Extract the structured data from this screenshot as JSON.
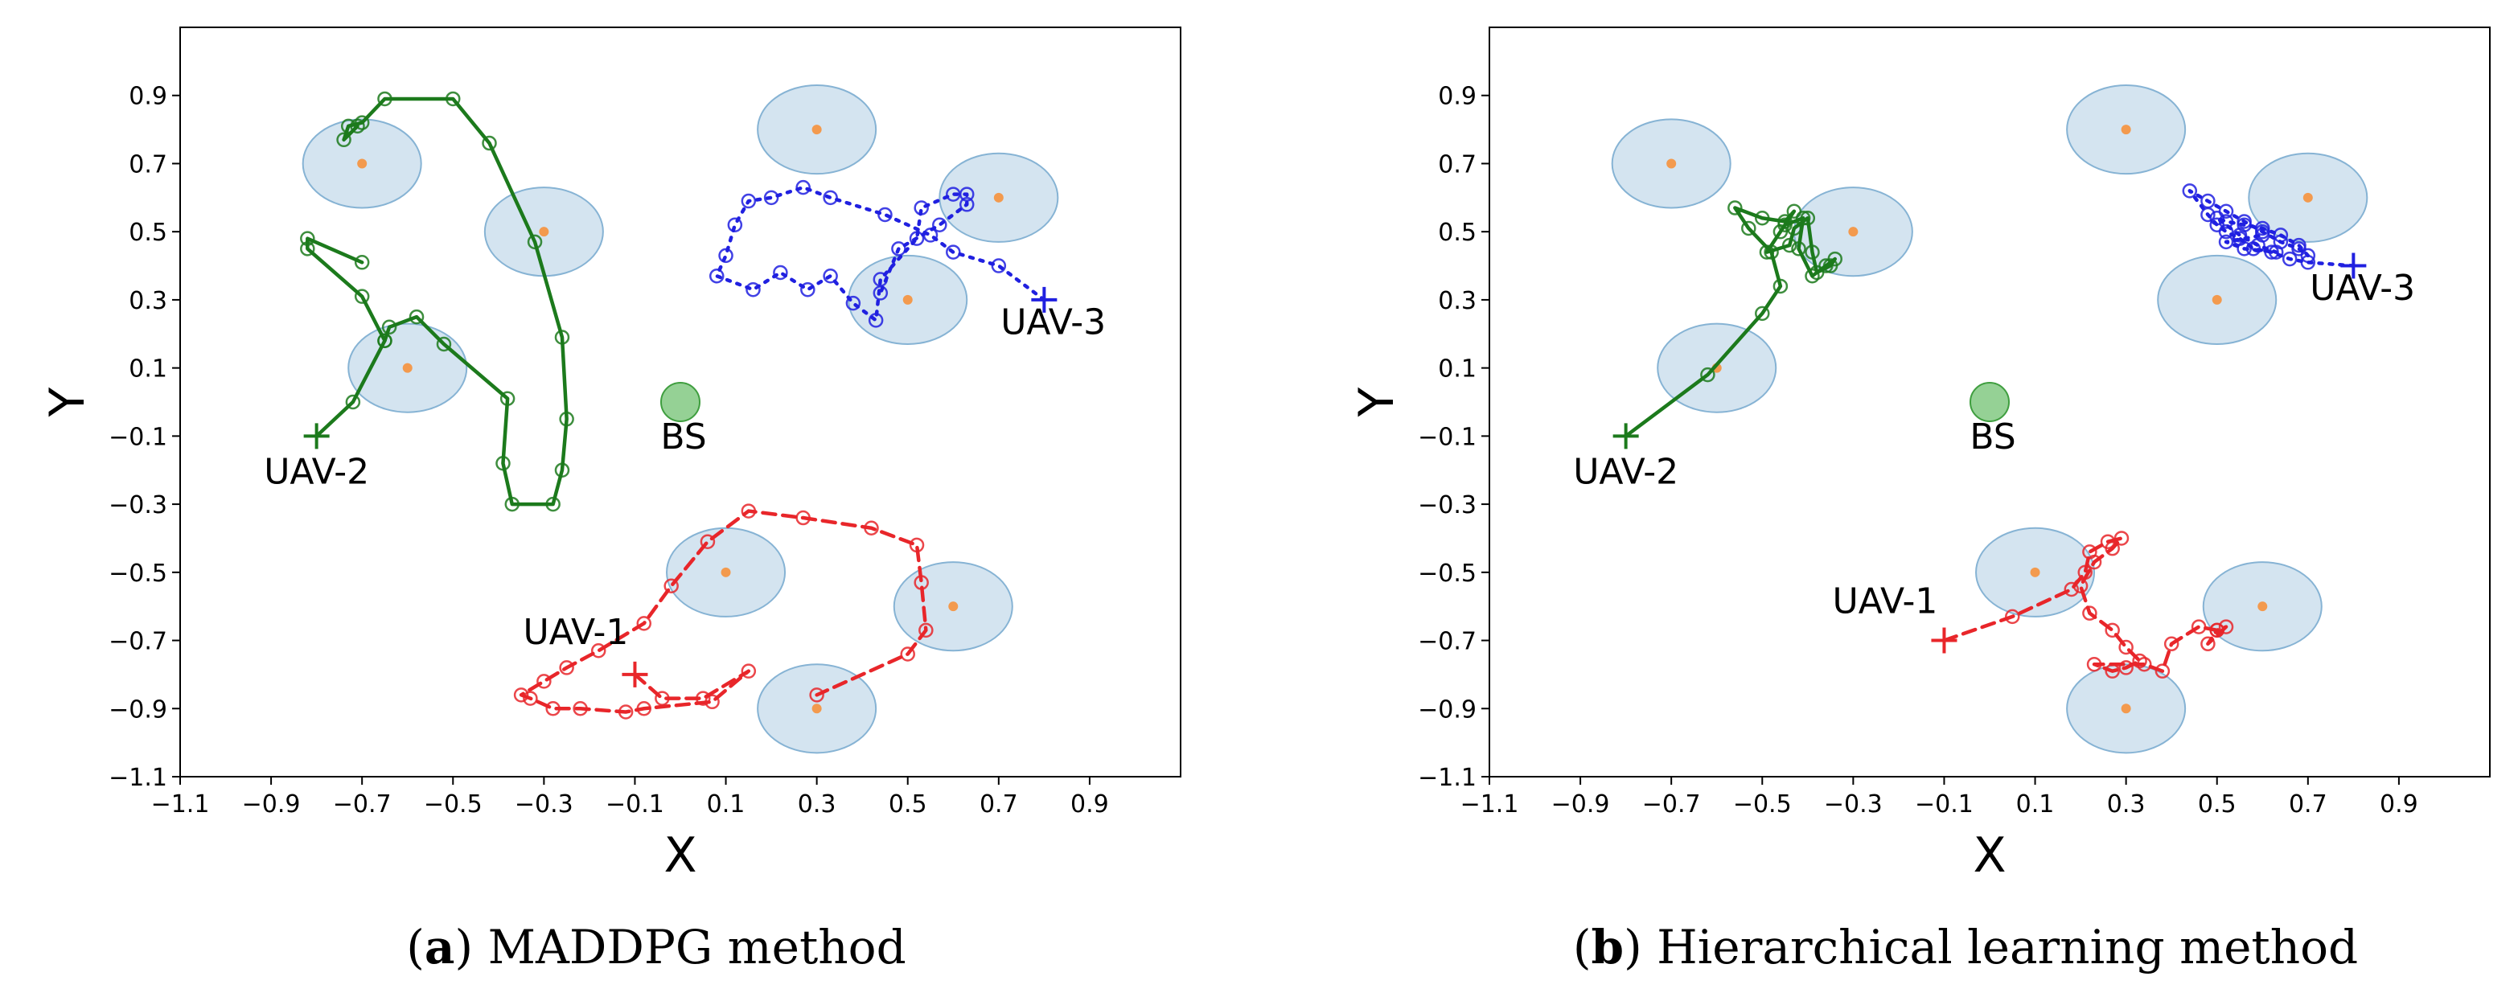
{
  "chart_data": [
    {
      "type": "scatter",
      "panel_letter": "a",
      "caption": "MADDPG method",
      "title": "",
      "xlabel": "X",
      "ylabel": "Y",
      "xlim": [
        -1.1,
        1.1
      ],
      "ylim": [
        -1.1,
        1.1
      ],
      "xticks": [
        "−1.1",
        "−0.9",
        "−0.7",
        "−0.5",
        "−0.3",
        "−0.1",
        "0.1",
        "0.3",
        "0.5",
        "0.7",
        "0.9"
      ],
      "yticks": [
        "−1.1",
        "−0.9",
        "−0.7",
        "−0.5",
        "−0.3",
        "−0.1",
        "0.1",
        "0.3",
        "0.5",
        "0.7",
        "0.9"
      ],
      "grid": false,
      "coverage_radius": 0.13,
      "targets": [
        [
          -0.7,
          0.7
        ],
        [
          -0.3,
          0.5
        ],
        [
          -0.6,
          0.1
        ],
        [
          0.3,
          0.8
        ],
        [
          0.7,
          0.6
        ],
        [
          0.5,
          0.3
        ],
        [
          0.1,
          -0.5
        ],
        [
          0.6,
          -0.6
        ],
        [
          0.3,
          -0.9
        ]
      ],
      "base_station": {
        "label": "BS",
        "x": 0.0,
        "y": 0.0
      },
      "series": [
        {
          "name": "UAV-1",
          "color": "#e8262a",
          "dash": "dashed",
          "start": [
            -0.1,
            -0.8
          ],
          "label_anchor": [
            -0.23,
            -0.71
          ],
          "points": [
            [
              -0.1,
              -0.8
            ],
            [
              -0.04,
              -0.87
            ],
            [
              0.05,
              -0.87
            ],
            [
              0.15,
              -0.79
            ],
            [
              0.07,
              -0.88
            ],
            [
              -0.08,
              -0.9
            ],
            [
              -0.12,
              -0.91
            ],
            [
              -0.22,
              -0.9
            ],
            [
              -0.28,
              -0.9
            ],
            [
              -0.33,
              -0.87
            ],
            [
              -0.35,
              -0.86
            ],
            [
              -0.3,
              -0.82
            ],
            [
              -0.25,
              -0.78
            ],
            [
              -0.18,
              -0.73
            ],
            [
              -0.08,
              -0.65
            ],
            [
              -0.02,
              -0.54
            ],
            [
              0.06,
              -0.41
            ],
            [
              0.15,
              -0.32
            ],
            [
              0.27,
              -0.34
            ],
            [
              0.42,
              -0.37
            ],
            [
              0.52,
              -0.42
            ],
            [
              0.53,
              -0.53
            ],
            [
              0.54,
              -0.67
            ],
            [
              0.5,
              -0.74
            ],
            [
              0.3,
              -0.86
            ]
          ]
        },
        {
          "name": "UAV-2",
          "color": "#1c7a1c",
          "dash": "solid",
          "start": [
            -0.8,
            -0.1
          ],
          "label_anchor": [
            -0.8,
            -0.24
          ],
          "points": [
            [
              -0.8,
              -0.1
            ],
            [
              -0.72,
              0.0
            ],
            [
              -0.65,
              0.18
            ],
            [
              -0.64,
              0.22
            ],
            [
              -0.58,
              0.25
            ],
            [
              -0.52,
              0.17
            ],
            [
              -0.38,
              0.01
            ],
            [
              -0.39,
              -0.18
            ],
            [
              -0.37,
              -0.3
            ],
            [
              -0.28,
              -0.3
            ],
            [
              -0.26,
              -0.2
            ],
            [
              -0.25,
              -0.05
            ],
            [
              -0.26,
              0.19
            ],
            [
              -0.32,
              0.47
            ],
            [
              -0.42,
              0.76
            ],
            [
              -0.5,
              0.89
            ],
            [
              -0.65,
              0.89
            ],
            [
              -0.7,
              0.82
            ],
            [
              -0.73,
              0.81
            ],
            [
              -0.74,
              0.77
            ],
            [
              -0.71,
              0.81
            ]
          ],
          "branch": [
            [
              -0.65,
              0.18
            ],
            [
              -0.7,
              0.31
            ],
            [
              -0.82,
              0.45
            ],
            [
              -0.82,
              0.48
            ],
            [
              -0.7,
              0.41
            ]
          ]
        },
        {
          "name": "UAV-3",
          "color": "#2020e0",
          "dash": "dotted",
          "start": [
            0.8,
            0.3
          ],
          "label_anchor": [
            0.82,
            0.2
          ],
          "points": [
            [
              0.8,
              0.3
            ],
            [
              0.7,
              0.4
            ],
            [
              0.6,
              0.44
            ],
            [
              0.55,
              0.49
            ],
            [
              0.45,
              0.55
            ],
            [
              0.33,
              0.6
            ],
            [
              0.27,
              0.63
            ],
            [
              0.2,
              0.6
            ],
            [
              0.15,
              0.59
            ],
            [
              0.12,
              0.52
            ],
            [
              0.1,
              0.43
            ],
            [
              0.08,
              0.37
            ],
            [
              0.16,
              0.33
            ],
            [
              0.22,
              0.38
            ],
            [
              0.28,
              0.33
            ],
            [
              0.33,
              0.37
            ],
            [
              0.38,
              0.29
            ],
            [
              0.43,
              0.24
            ],
            [
              0.44,
              0.36
            ],
            [
              0.52,
              0.48
            ],
            [
              0.53,
              0.57
            ],
            [
              0.6,
              0.61
            ],
            [
              0.63,
              0.61
            ],
            [
              0.63,
              0.58
            ],
            [
              0.57,
              0.52
            ],
            [
              0.48,
              0.45
            ],
            [
              0.44,
              0.32
            ]
          ]
        }
      ]
    },
    {
      "type": "scatter",
      "panel_letter": "b",
      "caption": "Hierarchical learning method",
      "title": "",
      "xlabel": "X",
      "ylabel": "Y",
      "xlim": [
        -1.1,
        1.1
      ],
      "ylim": [
        -1.1,
        1.1
      ],
      "xticks": [
        "−1.1",
        "−0.9",
        "−0.7",
        "−0.5",
        "−0.3",
        "−0.1",
        "0.1",
        "0.3",
        "0.5",
        "0.7",
        "0.9"
      ],
      "yticks": [
        "−1.1",
        "−0.9",
        "−0.7",
        "−0.5",
        "−0.3",
        "−0.1",
        "0.1",
        "0.3",
        "0.5",
        "0.7",
        "0.9"
      ],
      "grid": false,
      "coverage_radius": 0.13,
      "targets": [
        [
          -0.7,
          0.7
        ],
        [
          -0.3,
          0.5
        ],
        [
          -0.6,
          0.1
        ],
        [
          0.3,
          0.8
        ],
        [
          0.7,
          0.6
        ],
        [
          0.5,
          0.3
        ],
        [
          0.1,
          -0.5
        ],
        [
          0.6,
          -0.6
        ],
        [
          0.3,
          -0.9
        ]
      ],
      "base_station": {
        "label": "BS",
        "x": 0.0,
        "y": 0.0
      },
      "series": [
        {
          "name": "UAV-1",
          "color": "#e8262a",
          "dash": "dashed",
          "start": [
            -0.1,
            -0.7
          ],
          "label_anchor": [
            -0.23,
            -0.62
          ],
          "points": [
            [
              -0.1,
              -0.7
            ],
            [
              0.05,
              -0.63
            ],
            [
              0.18,
              -0.55
            ],
            [
              0.21,
              -0.5
            ],
            [
              0.22,
              -0.44
            ],
            [
              0.26,
              -0.41
            ],
            [
              0.29,
              -0.4
            ],
            [
              0.27,
              -0.43
            ],
            [
              0.23,
              -0.47
            ],
            [
              0.2,
              -0.54
            ],
            [
              0.22,
              -0.62
            ],
            [
              0.27,
              -0.67
            ],
            [
              0.3,
              -0.72
            ],
            [
              0.33,
              -0.76
            ],
            [
              0.3,
              -0.78
            ],
            [
              0.27,
              -0.79
            ],
            [
              0.23,
              -0.77
            ],
            [
              0.34,
              -0.77
            ],
            [
              0.38,
              -0.79
            ],
            [
              0.4,
              -0.71
            ],
            [
              0.46,
              -0.66
            ],
            [
              0.5,
              -0.67
            ],
            [
              0.52,
              -0.66
            ],
            [
              0.48,
              -0.71
            ],
            [
              0.5,
              -0.67
            ]
          ]
        },
        {
          "name": "UAV-2",
          "color": "#1c7a1c",
          "dash": "solid",
          "start": [
            -0.8,
            -0.1
          ],
          "label_anchor": [
            -0.8,
            -0.24
          ],
          "points": [
            [
              -0.8,
              -0.1
            ],
            [
              -0.62,
              0.08
            ],
            [
              -0.5,
              0.26
            ],
            [
              -0.46,
              0.34
            ],
            [
              -0.48,
              0.44
            ],
            [
              -0.53,
              0.51
            ],
            [
              -0.56,
              0.57
            ],
            [
              -0.5,
              0.54
            ],
            [
              -0.45,
              0.53
            ],
            [
              -0.43,
              0.56
            ],
            [
              -0.46,
              0.5
            ],
            [
              -0.49,
              0.44
            ],
            [
              -0.44,
              0.46
            ],
            [
              -0.43,
              0.51
            ],
            [
              -0.4,
              0.54
            ],
            [
              -0.39,
              0.44
            ],
            [
              -0.38,
              0.38
            ],
            [
              -0.35,
              0.4
            ],
            [
              -0.34,
              0.42
            ],
            [
              -0.36,
              0.4
            ],
            [
              -0.39,
              0.37
            ],
            [
              -0.42,
              0.45
            ],
            [
              -0.41,
              0.54
            ],
            [
              -0.45,
              0.52
            ]
          ]
        },
        {
          "name": "UAV-3",
          "color": "#2020e0",
          "dash": "dotted",
          "start": [
            0.8,
            0.4
          ],
          "label_anchor": [
            0.82,
            0.3
          ],
          "points": [
            [
              0.8,
              0.4
            ],
            [
              0.7,
              0.41
            ],
            [
              0.66,
              0.42
            ],
            [
              0.62,
              0.44
            ],
            [
              0.58,
              0.45
            ],
            [
              0.55,
              0.48
            ],
            [
              0.52,
              0.5
            ],
            [
              0.5,
              0.52
            ],
            [
              0.48,
              0.55
            ],
            [
              0.44,
              0.62
            ],
            [
              0.48,
              0.59
            ],
            [
              0.52,
              0.56
            ],
            [
              0.56,
              0.53
            ],
            [
              0.6,
              0.5
            ],
            [
              0.64,
              0.47
            ],
            [
              0.68,
              0.45
            ],
            [
              0.7,
              0.43
            ],
            [
              0.68,
              0.46
            ],
            [
              0.64,
              0.49
            ],
            [
              0.6,
              0.51
            ],
            [
              0.56,
              0.52
            ],
            [
              0.52,
              0.53
            ],
            [
              0.5,
              0.54
            ],
            [
              0.55,
              0.49
            ],
            [
              0.59,
              0.46
            ],
            [
              0.63,
              0.44
            ],
            [
              0.56,
              0.45
            ],
            [
              0.52,
              0.47
            ],
            [
              0.6,
              0.49
            ]
          ]
        }
      ]
    }
  ]
}
